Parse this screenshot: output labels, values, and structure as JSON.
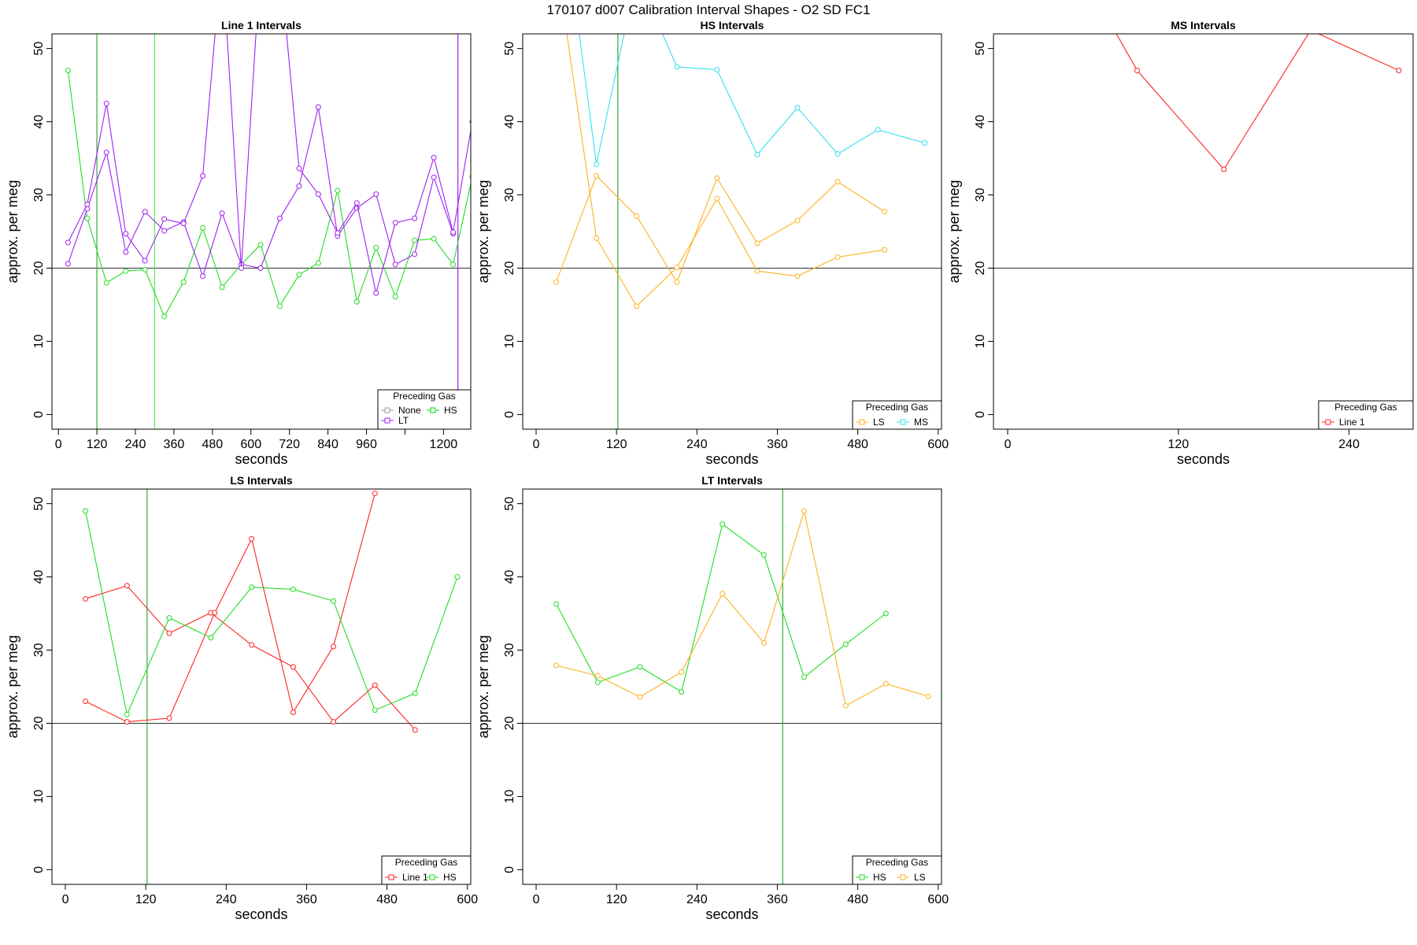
{
  "figure_title": "170107   d007   Calibration Interval Shapes - O2 SD FC1",
  "chart_data": [
    {
      "type": "line",
      "title": "Line 1 Intervals",
      "xlabel": "seconds",
      "ylabel": "approx. per meg",
      "xlim": [
        -20,
        1285
      ],
      "ylim": [
        -2,
        52
      ],
      "xticks": [
        0,
        120,
        240,
        360,
        480,
        600,
        720,
        840,
        960,
        1200
      ],
      "yticks": [
        0,
        10,
        20,
        30,
        40,
        50
      ],
      "hline": 20,
      "vlines": [
        {
          "x": 120,
          "color": "#33aa33"
        },
        {
          "x": 300,
          "color": "#55ee55"
        },
        {
          "x": 1245,
          "color": "#a020f0"
        }
      ],
      "legend": {
        "title": "Preceding Gas",
        "position": "bottom-right",
        "entries": [
          {
            "label": "None",
            "color": "#999999"
          },
          {
            "label": "HS",
            "color": "#00dd00"
          },
          {
            "label": "LT",
            "color": "#a020f0"
          }
        ]
      },
      "series": [
        {
          "name": "HS",
          "color": "#22dd22",
          "x": [
            30,
            90,
            150,
            210,
            270,
            330,
            390,
            450,
            510,
            570,
            630,
            690,
            750,
            810,
            870,
            930,
            990,
            1050,
            1110,
            1170,
            1230,
            1290
          ],
          "y": [
            47,
            26.8,
            18,
            19.6,
            19.8,
            13.4,
            18.1,
            25.5,
            17.4,
            20.5,
            23.2,
            14.8,
            19.1,
            20.7,
            30.6,
            15.4,
            22.8,
            16.1,
            23.8,
            24,
            20.5,
            32.5
          ]
        },
        {
          "name": "LT",
          "color": "#a020f0",
          "x": [
            30,
            90,
            150,
            210,
            270,
            330,
            390,
            450,
            510,
            570,
            630,
            690,
            750,
            810,
            870,
            930,
            990,
            1050,
            1110,
            1170,
            1230
          ],
          "y": [
            20.6,
            28.1,
            35.8,
            22.2,
            27.7,
            25.1,
            26.3,
            18.9,
            27.5,
            20.5,
            20,
            26.8,
            31.2,
            42,
            24.4,
            28.2,
            30.1,
            20.5,
            21.9,
            32.4,
            24.7
          ]
        },
        {
          "name": "LT",
          "color": "#a020f0",
          "x": [
            30,
            90,
            150,
            210,
            270,
            330,
            390,
            450,
            510,
            570,
            630,
            690,
            750,
            810,
            870,
            930,
            990,
            1050,
            1110,
            1170,
            1230,
            1290
          ],
          "y": [
            23.5,
            28.7,
            42.5,
            24.7,
            21,
            26.7,
            26.1,
            32.6,
            63,
            20,
            62,
            62,
            33.6,
            30.1,
            24.8,
            28.9,
            16.6,
            26.2,
            26.8,
            35.1,
            24.9,
            40
          ]
        }
      ]
    },
    {
      "type": "line",
      "title": "HS Intervals",
      "xlabel": "seconds",
      "ylabel": "approx. per meg",
      "xlim": [
        -20,
        605
      ],
      "ylim": [
        -2,
        52
      ],
      "xticks": [
        0,
        120,
        240,
        360,
        480,
        600
      ],
      "yticks": [
        0,
        10,
        20,
        30,
        40,
        50
      ],
      "hline": 20,
      "vlines": [
        {
          "x": 122,
          "color": "#33aa33"
        }
      ],
      "legend": {
        "title": "Preceding Gas",
        "position": "bottom-right",
        "entries": [
          {
            "label": "LS",
            "color": "#ffb020"
          },
          {
            "label": "MS",
            "color": "#33e0ee"
          }
        ]
      },
      "series": [
        {
          "name": "LS",
          "color": "#ffb020",
          "x": [
            30,
            90,
            150,
            210,
            270,
            330,
            390,
            450,
            520
          ],
          "y": [
            18.1,
            32.6,
            27.1,
            18.1,
            32.3,
            23.4,
            26.5,
            31.8,
            27.7
          ]
        },
        {
          "name": "LS",
          "color": "#ffb020",
          "x": [
            30,
            90,
            150,
            210,
            270,
            330,
            390,
            450,
            520
          ],
          "y": [
            62,
            24.1,
            14.8,
            20.1,
            29.5,
            19.6,
            18.9,
            21.5,
            22.5
          ]
        },
        {
          "name": "MS",
          "color": "#33e0ee",
          "x": [
            50,
            90,
            150,
            210,
            270,
            330,
            390,
            450,
            510,
            580
          ],
          "y": [
            62,
            34.2,
            60,
            47.5,
            47.1,
            35.5,
            41.9,
            35.6,
            38.9,
            37.1
          ]
        }
      ]
    },
    {
      "type": "line",
      "title": "MS Intervals",
      "xlabel": "seconds",
      "ylabel": "approx. per meg",
      "xlim": [
        -10,
        285
      ],
      "ylim": [
        -2,
        52
      ],
      "xticks": [
        0,
        120,
        240
      ],
      "yticks": [
        0,
        10,
        20,
        30,
        40,
        50
      ],
      "hline": 20,
      "vlines": [],
      "legend": {
        "title": "Preceding Gas",
        "position": "bottom-right",
        "entries": [
          {
            "label": "Line 1",
            "color": "#ff2222"
          }
        ]
      },
      "series": [
        {
          "name": "Line 1",
          "color": "#ff2222",
          "x": [
            30,
            91,
            152,
            213,
            275
          ],
          "y": [
            68,
            47,
            33.5,
            52.5,
            47
          ]
        }
      ]
    },
    {
      "type": "line",
      "title": "LS Intervals",
      "xlabel": "seconds",
      "ylabel": "approx. per meg",
      "xlim": [
        -20,
        605
      ],
      "ylim": [
        -2,
        52
      ],
      "xticks": [
        0,
        120,
        240,
        360,
        480,
        600
      ],
      "yticks": [
        0,
        10,
        20,
        30,
        40,
        50
      ],
      "hline": 20,
      "vlines": [
        {
          "x": 122,
          "color": "#33aa33"
        }
      ],
      "legend": {
        "title": "Preceding Gas",
        "position": "bottom-right",
        "entries": [
          {
            "label": "Line 1",
            "color": "#ff2222"
          },
          {
            "label": "HS",
            "color": "#22dd22"
          }
        ]
      },
      "series": [
        {
          "name": "Line 1",
          "color": "#ff2222",
          "x": [
            30,
            92,
            155,
            217,
            278,
            340,
            400,
            462,
            522
          ],
          "y": [
            37,
            38.8,
            32.3,
            35.1,
            30.7,
            27.7,
            20.2,
            25.2,
            19.1
          ]
        },
        {
          "name": "Line 1",
          "color": "#ff2222",
          "x": [
            30,
            92,
            155,
            223,
            278,
            340,
            400,
            462
          ],
          "y": [
            23,
            20.2,
            20.7,
            35.1,
            45.2,
            21.5,
            30.5,
            51.4
          ]
        },
        {
          "name": "HS",
          "color": "#22dd22",
          "x": [
            30,
            92,
            155,
            217,
            278,
            340,
            400,
            462,
            522,
            585
          ],
          "y": [
            49,
            21.2,
            34.4,
            31.7,
            38.6,
            38.3,
            36.7,
            21.8,
            24.1,
            40
          ]
        }
      ]
    },
    {
      "type": "line",
      "title": "LT Intervals",
      "xlabel": "seconds",
      "ylabel": "approx. per meg",
      "xlim": [
        -20,
        605
      ],
      "ylim": [
        -2,
        52
      ],
      "xticks": [
        0,
        120,
        240,
        360,
        480,
        600
      ],
      "yticks": [
        0,
        10,
        20,
        30,
        40,
        50
      ],
      "hline": 20,
      "vlines": [
        {
          "x": 368,
          "color": "#33aa33"
        }
      ],
      "legend": {
        "title": "Preceding Gas",
        "position": "bottom-right",
        "entries": [
          {
            "label": "HS",
            "color": "#22dd22"
          },
          {
            "label": "LS",
            "color": "#ffb020"
          }
        ]
      },
      "series": [
        {
          "name": "HS",
          "color": "#22dd22",
          "x": [
            30,
            92,
            155,
            217,
            278,
            340,
            400,
            462,
            522
          ],
          "y": [
            36.3,
            25.6,
            27.7,
            24.3,
            47.2,
            43,
            26.3,
            30.8,
            35
          ]
        },
        {
          "name": "LS",
          "color": "#ffb020",
          "x": [
            30,
            92,
            155,
            217,
            278,
            340,
            400,
            462,
            522,
            585
          ],
          "y": [
            27.9,
            26.5,
            23.6,
            27,
            37.7,
            31,
            49,
            22.4,
            25.4,
            23.7
          ]
        }
      ]
    }
  ]
}
